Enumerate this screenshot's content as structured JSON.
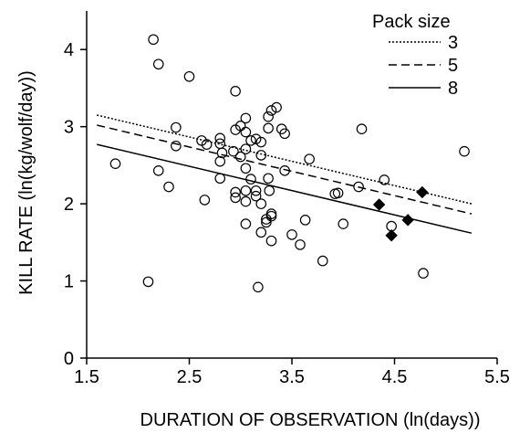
{
  "chart_data": {
    "type": "scatter",
    "xlabel": "DURATION OF OBSERVATION (ln(days))",
    "ylabel": "KILL RATE (ln(kg/wolf/day))",
    "xlim": [
      1.5,
      5.5
    ],
    "ylim": [
      0,
      4.5
    ],
    "x_ticks": [
      "1.5",
      "2.5",
      "3.5",
      "4.5",
      "5.5"
    ],
    "x_tick_values": [
      1.5,
      2.5,
      3.5,
      4.5,
      5.5
    ],
    "y_ticks": [
      "0",
      "1",
      "2",
      "3",
      "4"
    ],
    "y_tick_values": [
      0,
      1,
      2,
      3,
      4
    ],
    "grid": false,
    "legend": {
      "title": "Pack size",
      "placement": "top-right",
      "entries": [
        {
          "label": "3",
          "style": "dotted"
        },
        {
          "label": "5",
          "style": "dashed"
        },
        {
          "label": "8",
          "style": "solid"
        }
      ]
    },
    "lines": [
      {
        "name": "3",
        "style": "dotted",
        "x": [
          1.6,
          5.25
        ],
        "y": [
          3.15,
          2.0
        ]
      },
      {
        "name": "5",
        "style": "dashed",
        "x": [
          1.6,
          5.25
        ],
        "y": [
          3.02,
          1.87
        ]
      },
      {
        "name": "8",
        "style": "solid",
        "x": [
          1.6,
          5.25
        ],
        "y": [
          2.77,
          1.62
        ]
      }
    ],
    "series": [
      {
        "marker": "open-circle",
        "points": [
          {
            "x": 2.15,
            "y": 4.13
          },
          {
            "x": 2.2,
            "y": 3.81
          },
          {
            "x": 2.5,
            "y": 3.65
          },
          {
            "x": 1.78,
            "y": 2.52
          },
          {
            "x": 2.2,
            "y": 2.43
          },
          {
            "x": 2.3,
            "y": 2.22
          },
          {
            "x": 2.1,
            "y": 0.99
          },
          {
            "x": 2.37,
            "y": 2.99
          },
          {
            "x": 2.37,
            "y": 2.75
          },
          {
            "x": 2.62,
            "y": 2.82
          },
          {
            "x": 2.67,
            "y": 2.77
          },
          {
            "x": 2.65,
            "y": 2.05
          },
          {
            "x": 2.8,
            "y": 2.85
          },
          {
            "x": 2.8,
            "y": 2.78
          },
          {
            "x": 2.82,
            "y": 2.66
          },
          {
            "x": 2.8,
            "y": 2.55
          },
          {
            "x": 2.8,
            "y": 2.33
          },
          {
            "x": 2.95,
            "y": 3.46
          },
          {
            "x": 2.95,
            "y": 2.96
          },
          {
            "x": 3.0,
            "y": 3.01
          },
          {
            "x": 2.93,
            "y": 2.68
          },
          {
            "x": 3.0,
            "y": 2.61
          },
          {
            "x": 2.95,
            "y": 2.15
          },
          {
            "x": 2.95,
            "y": 2.08
          },
          {
            "x": 3.05,
            "y": 3.11
          },
          {
            "x": 3.05,
            "y": 2.93
          },
          {
            "x": 3.05,
            "y": 2.71
          },
          {
            "x": 3.05,
            "y": 2.46
          },
          {
            "x": 3.05,
            "y": 2.17
          },
          {
            "x": 3.05,
            "y": 2.03
          },
          {
            "x": 3.05,
            "y": 1.74
          },
          {
            "x": 3.1,
            "y": 2.82
          },
          {
            "x": 3.1,
            "y": 2.32
          },
          {
            "x": 3.15,
            "y": 2.84
          },
          {
            "x": 3.15,
            "y": 2.17
          },
          {
            "x": 3.15,
            "y": 2.1
          },
          {
            "x": 3.2,
            "y": 2.8
          },
          {
            "x": 3.2,
            "y": 2.63
          },
          {
            "x": 3.2,
            "y": 2.0
          },
          {
            "x": 3.2,
            "y": 1.63
          },
          {
            "x": 3.25,
            "y": 1.8
          },
          {
            "x": 3.25,
            "y": 1.76
          },
          {
            "x": 3.27,
            "y": 3.13
          },
          {
            "x": 3.27,
            "y": 2.98
          },
          {
            "x": 3.27,
            "y": 2.33
          },
          {
            "x": 3.28,
            "y": 2.17
          },
          {
            "x": 3.3,
            "y": 3.21
          },
          {
            "x": 3.3,
            "y": 1.87
          },
          {
            "x": 3.3,
            "y": 1.84
          },
          {
            "x": 3.35,
            "y": 3.25
          },
          {
            "x": 3.3,
            "y": 1.52
          },
          {
            "x": 3.17,
            "y": 0.92
          },
          {
            "x": 3.4,
            "y": 2.97
          },
          {
            "x": 3.43,
            "y": 2.91
          },
          {
            "x": 3.43,
            "y": 2.43
          },
          {
            "x": 3.5,
            "y": 1.6
          },
          {
            "x": 3.58,
            "y": 1.47
          },
          {
            "x": 3.63,
            "y": 1.79
          },
          {
            "x": 3.67,
            "y": 2.58
          },
          {
            "x": 3.8,
            "y": 1.26
          },
          {
            "x": 3.92,
            "y": 2.13
          },
          {
            "x": 3.95,
            "y": 2.14
          },
          {
            "x": 4.0,
            "y": 1.74
          },
          {
            "x": 4.15,
            "y": 2.22
          },
          {
            "x": 4.18,
            "y": 2.97
          },
          {
            "x": 4.4,
            "y": 2.31
          },
          {
            "x": 4.47,
            "y": 1.71
          },
          {
            "x": 4.78,
            "y": 1.1
          },
          {
            "x": 5.18,
            "y": 2.68
          }
        ]
      },
      {
        "marker": "filled-diamond",
        "points": [
          {
            "x": 4.35,
            "y": 1.99
          },
          {
            "x": 4.47,
            "y": 1.59
          },
          {
            "x": 4.63,
            "y": 1.79
          },
          {
            "x": 4.77,
            "y": 2.15
          }
        ]
      }
    ]
  }
}
